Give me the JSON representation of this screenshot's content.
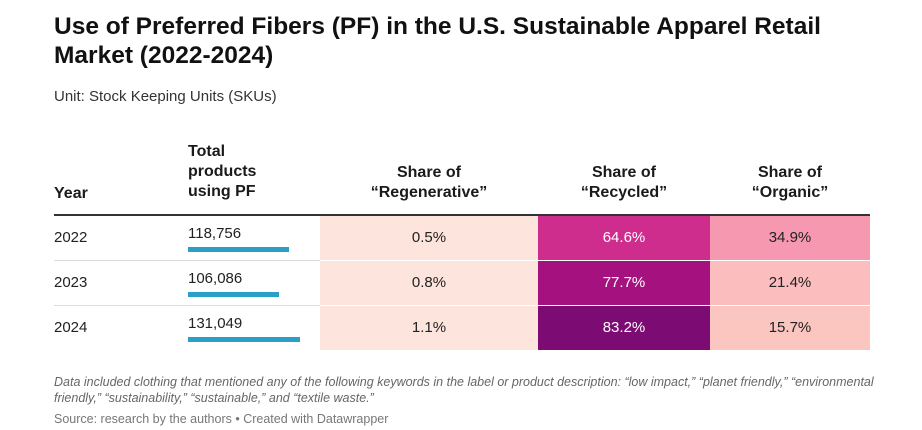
{
  "title": "Use of Preferred Fibers (PF) in the U.S. Sustainable Apparel Retail Market (2022-2024)",
  "subtitle": "Unit: Stock Keeping Units (SKUs)",
  "columns": {
    "year": "Year",
    "total": [
      "Total",
      "products",
      "using PF"
    ],
    "regen": [
      "Share of",
      "“Regenerative”"
    ],
    "recycled": [
      "Share of",
      "“Recycled”"
    ],
    "organic": [
      "Share of",
      "“Organic”"
    ]
  },
  "colors": {
    "bar": "#2a9fc7",
    "regen": "#fde4dc",
    "recycled": [
      "#cf2d8e",
      "#a5117f",
      "#7c0c74"
    ],
    "organic": [
      "#f598b0",
      "#fbbdbe",
      "#fbc5c0"
    ]
  },
  "chart_data": {
    "type": "table",
    "rows": [
      {
        "year": "2022",
        "total": "118,756",
        "total_value": 118756,
        "regen": "0.5%",
        "recycled": "64.6%",
        "organic": "34.9%"
      },
      {
        "year": "2023",
        "total": "106,086",
        "total_value": 106086,
        "regen": "0.8%",
        "recycled": "77.7%",
        "organic": "21.4%"
      },
      {
        "year": "2024",
        "total": "131,049",
        "total_value": 131049,
        "regen": "1.1%",
        "recycled": "83.2%",
        "organic": "15.7%"
      }
    ]
  },
  "notes": "Data included clothing that mentioned any of the following keywords in the label or product description: “low impact,” “planet friendly,” “environmental friendly,” “sustainability,” “sustainable,” and “textile waste.”",
  "source": "Source: research by the authors • Created with Datawrapper"
}
